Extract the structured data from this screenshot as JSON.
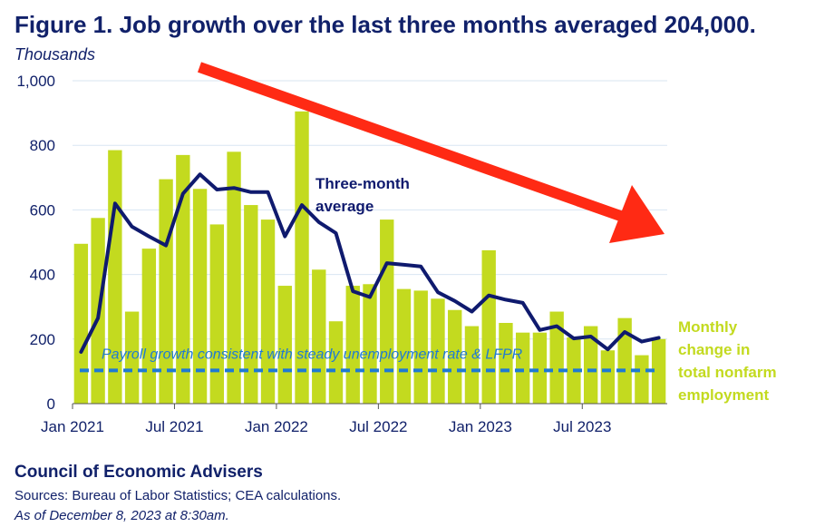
{
  "title": "Figure 1. Job growth over the last three months averaged 204,000.",
  "units_label": "Thousands",
  "footer": {
    "org": "Council of Economic Advisers",
    "sources": "Sources: Bureau of Labor Statistics; CEA calculations.",
    "as_of": "As of December 8, 2023 at 8:30am."
  },
  "colors": {
    "bars": "#c3da1f",
    "average_line": "#0f1a6e",
    "reference_line": "#1f7ad3",
    "arrow": "#ff2a14",
    "text": "#11216a",
    "grid": "#d9e6f2"
  },
  "chart_data": {
    "type": "bar",
    "categories": [
      "Jan 2021",
      "Feb 2021",
      "Mar 2021",
      "Apr 2021",
      "May 2021",
      "Jun 2021",
      "Jul 2021",
      "Aug 2021",
      "Sep 2021",
      "Oct 2021",
      "Nov 2021",
      "Dec 2021",
      "Jan 2022",
      "Feb 2022",
      "Mar 2022",
      "Apr 2022",
      "May 2022",
      "Jun 2022",
      "Jul 2022",
      "Aug 2022",
      "Sep 2022",
      "Oct 2022",
      "Nov 2022",
      "Dec 2022",
      "Jan 2023",
      "Feb 2023",
      "Mar 2023",
      "Apr 2023",
      "May 2023",
      "Jun 2023",
      "Jul 2023",
      "Aug 2023",
      "Sep 2023",
      "Oct 2023",
      "Nov 2023"
    ],
    "series": [
      {
        "name": "Monthly change in total nonfarm employment",
        "type": "bar",
        "values": [
          495,
          575,
          785,
          285,
          480,
          695,
          770,
          665,
          555,
          780,
          615,
          570,
          365,
          905,
          415,
          255,
          365,
          370,
          570,
          355,
          350,
          325,
          290,
          240,
          475,
          250,
          220,
          220,
          285,
          205,
          240,
          165,
          265,
          150,
          200
        ]
      },
      {
        "name": "Three-month average",
        "type": "line",
        "values": [
          160,
          265,
          620,
          548,
          518,
          490,
          650,
          710,
          663,
          668,
          655,
          655,
          518,
          615,
          562,
          528,
          348,
          330,
          435,
          430,
          425,
          345,
          318,
          285,
          335,
          322,
          312,
          228,
          240,
          202,
          208,
          168,
          222,
          192,
          204
        ]
      }
    ],
    "reference_line": {
      "value": 103,
      "label": "Payroll growth consistent with steady unemployment rate & LFPR"
    },
    "annotations": {
      "average_label": [
        "Three-month",
        "average"
      ],
      "bar_label": [
        "Monthly",
        "change in",
        "total nonfarm",
        "employment"
      ]
    },
    "x_tick_labels": [
      "Jan 2021",
      "Jul 2021",
      "Jan 2022",
      "Jul 2022",
      "Jan 2023",
      "Jul 2023"
    ],
    "y_ticks": [
      0,
      200,
      400,
      600,
      800,
      1000
    ],
    "y_tick_labels": [
      "0",
      "200",
      "400",
      "600",
      "800",
      "1,000"
    ],
    "ylim": [
      0,
      1000
    ],
    "grid": true,
    "legend": "none",
    "trend_arrow": "downward"
  }
}
